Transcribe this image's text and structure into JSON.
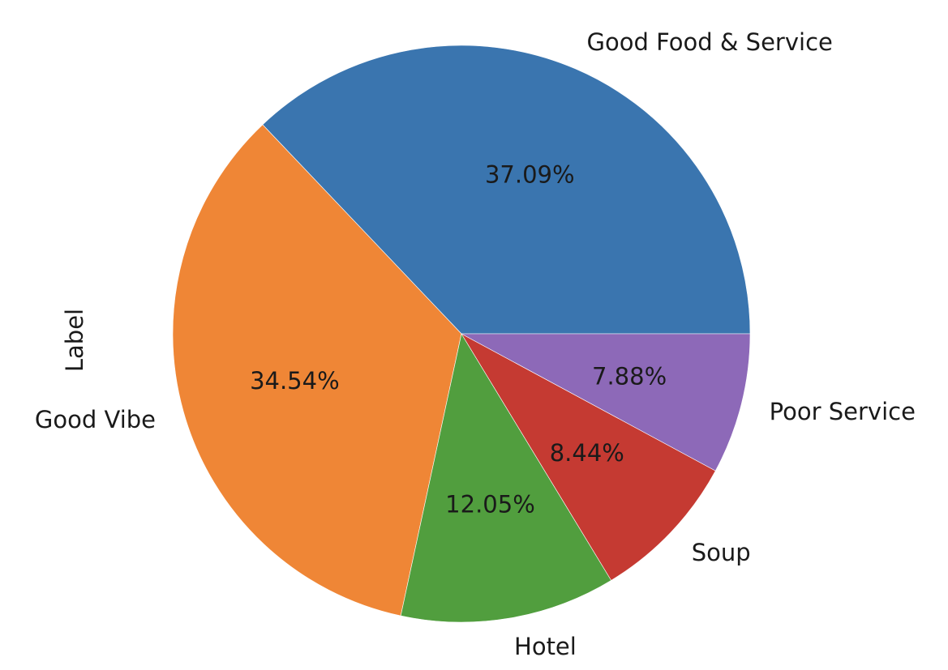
{
  "chart_data": {
    "type": "pie",
    "title": "",
    "ylabel": "Label",
    "slices": [
      {
        "label": "Good Food & Service",
        "value": 37.09,
        "pct_label": "37.09%",
        "color": "#3a75af"
      },
      {
        "label": "Good Vibe",
        "value": 34.54,
        "pct_label": "34.54%",
        "color": "#ef8636"
      },
      {
        "label": "Hotel",
        "value": 12.05,
        "pct_label": "12.05%",
        "color": "#519e3e"
      },
      {
        "label": "Soup",
        "value": 8.44,
        "pct_label": "8.44%",
        "color": "#c53a32"
      },
      {
        "label": "Poor Service",
        "value": 7.88,
        "pct_label": "7.88%",
        "color": "#8d69b8"
      }
    ],
    "start_angle_deg": 0,
    "direction": "counterclockwise",
    "legend": "none"
  }
}
